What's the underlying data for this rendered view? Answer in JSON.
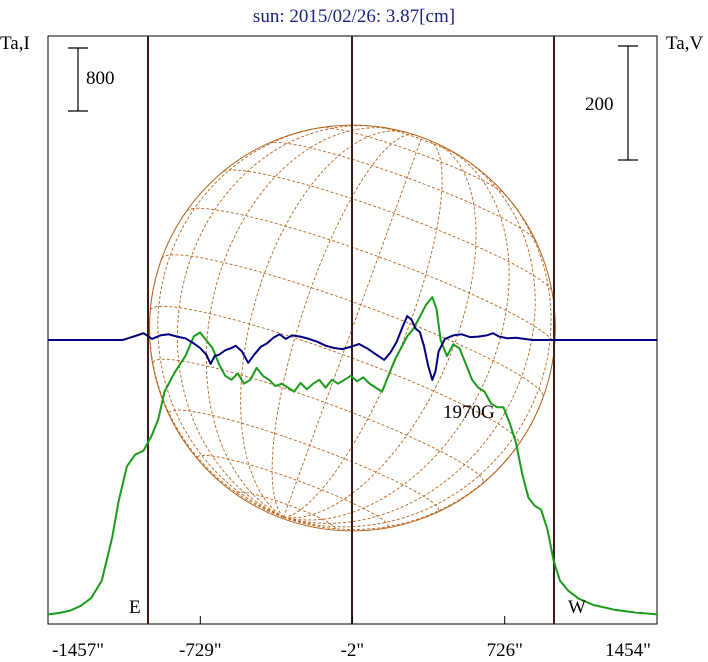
{
  "chart_data": {
    "type": "line",
    "title": "sun: 2015/02/26: 3.87[cm]",
    "left_axis_label": "Ta,I",
    "right_axis_label": "Ta,V",
    "left_scale_bar": "800",
    "right_scale_bar": "200",
    "x_ticks": [
      {
        "label": "-1457\"",
        "value": -1457
      },
      {
        "label": "-729\"",
        "value": -729
      },
      {
        "label": "-2\"",
        "value": -2
      },
      {
        "label": "726\"",
        "value": 726
      },
      {
        "label": "1454\"",
        "value": 1454
      }
    ],
    "limb_labels": {
      "east": "E",
      "west": "W"
    },
    "annotation": "1970G",
    "xlim": [
      -1457,
      1454
    ],
    "solar_disk": {
      "center_x": -2,
      "radius": 970
    },
    "series": [
      {
        "color": "#1a9b1a",
        "points": [
          [
            -1457,
            20
          ],
          [
            -1400,
            40
          ],
          [
            -1350,
            70
          ],
          [
            -1300,
            130
          ],
          [
            -1250,
            230
          ],
          [
            -1200,
            450
          ],
          [
            -1150,
            1000
          ],
          [
            -1120,
            1450
          ],
          [
            -1080,
            1900
          ],
          [
            -1040,
            2050
          ],
          [
            -1000,
            2100
          ],
          [
            -960,
            2300
          ],
          [
            -930,
            2500
          ],
          [
            -900,
            2850
          ],
          [
            -850,
            3100
          ],
          [
            -800,
            3300
          ],
          [
            -760,
            3550
          ],
          [
            -730,
            3600
          ],
          [
            -700,
            3500
          ],
          [
            -670,
            3400
          ],
          [
            -640,
            3200
          ],
          [
            -610,
            3050
          ],
          [
            -580,
            3000
          ],
          [
            -550,
            3080
          ],
          [
            -520,
            2950
          ],
          [
            -490,
            3000
          ],
          [
            -460,
            3150
          ],
          [
            -430,
            3050
          ],
          [
            -400,
            3000
          ],
          [
            -370,
            2920
          ],
          [
            -340,
            2950
          ],
          [
            -310,
            2900
          ],
          [
            -280,
            2850
          ],
          [
            -250,
            2960
          ],
          [
            -220,
            2880
          ],
          [
            -190,
            2950
          ],
          [
            -160,
            3000
          ],
          [
            -130,
            2900
          ],
          [
            -100,
            3000
          ],
          [
            -70,
            2950
          ],
          [
            -40,
            3000
          ],
          [
            -10,
            3050
          ],
          [
            20,
            2980
          ],
          [
            50,
            3030
          ],
          [
            80,
            2950
          ],
          [
            110,
            2900
          ],
          [
            140,
            2850
          ],
          [
            170,
            3050
          ],
          [
            200,
            3250
          ],
          [
            230,
            3400
          ],
          [
            260,
            3550
          ],
          [
            290,
            3650
          ],
          [
            320,
            3800
          ],
          [
            350,
            3950
          ],
          [
            380,
            4050
          ],
          [
            400,
            3900
          ],
          [
            420,
            3500
          ],
          [
            450,
            3300
          ],
          [
            480,
            3450
          ],
          [
            510,
            3400
          ],
          [
            540,
            3200
          ],
          [
            570,
            3000
          ],
          [
            600,
            2900
          ],
          [
            630,
            2850
          ],
          [
            660,
            2700
          ],
          [
            690,
            2650
          ],
          [
            720,
            2650
          ],
          [
            750,
            2450
          ],
          [
            780,
            2200
          ],
          [
            810,
            1800
          ],
          [
            840,
            1500
          ],
          [
            870,
            1400
          ],
          [
            900,
            1350
          ],
          [
            930,
            1100
          ],
          [
            960,
            700
          ],
          [
            990,
            450
          ],
          [
            1030,
            320
          ],
          [
            1080,
            220
          ],
          [
            1150,
            140
          ],
          [
            1250,
            80
          ],
          [
            1350,
            45
          ],
          [
            1454,
            20
          ]
        ]
      },
      {
        "color": "#000080",
        "points": [
          [
            -1457,
            0
          ],
          [
            -1300,
            0
          ],
          [
            -1200,
            0
          ],
          [
            -1100,
            0
          ],
          [
            -1040,
            7
          ],
          [
            -1000,
            12
          ],
          [
            -960,
            2
          ],
          [
            -920,
            8
          ],
          [
            -880,
            10
          ],
          [
            -840,
            6
          ],
          [
            -800,
            3
          ],
          [
            -760,
            -6
          ],
          [
            -730,
            -14
          ],
          [
            -700,
            -26
          ],
          [
            -680,
            -42
          ],
          [
            -660,
            -28
          ],
          [
            -640,
            -26
          ],
          [
            -610,
            -18
          ],
          [
            -580,
            -14
          ],
          [
            -560,
            -10
          ],
          [
            -530,
            -20
          ],
          [
            -500,
            -40
          ],
          [
            -470,
            -25
          ],
          [
            -440,
            -12
          ],
          [
            -410,
            -6
          ],
          [
            -380,
            4
          ],
          [
            -350,
            10
          ],
          [
            -320,
            2
          ],
          [
            -290,
            8
          ],
          [
            -250,
            6
          ],
          [
            -210,
            2
          ],
          [
            -170,
            -3
          ],
          [
            -130,
            -10
          ],
          [
            -90,
            -14
          ],
          [
            -50,
            -16
          ],
          [
            -10,
            -12
          ],
          [
            30,
            -7
          ],
          [
            70,
            -15
          ],
          [
            110,
            -25
          ],
          [
            150,
            -35
          ],
          [
            180,
            -22
          ],
          [
            210,
            -3
          ],
          [
            240,
            25
          ],
          [
            260,
            42
          ],
          [
            280,
            36
          ],
          [
            300,
            20
          ],
          [
            320,
            14
          ],
          [
            340,
            -10
          ],
          [
            360,
            -45
          ],
          [
            380,
            -70
          ],
          [
            395,
            -55
          ],
          [
            410,
            -20
          ],
          [
            440,
            2
          ],
          [
            480,
            8
          ],
          [
            520,
            10
          ],
          [
            560,
            5
          ],
          [
            600,
            6
          ],
          [
            640,
            8
          ],
          [
            670,
            12
          ],
          [
            700,
            6
          ],
          [
            740,
            3
          ],
          [
            780,
            4
          ],
          [
            820,
            2
          ],
          [
            860,
            0
          ],
          [
            900,
            0
          ],
          [
            1000,
            0
          ],
          [
            1200,
            0
          ],
          [
            1454,
            0
          ]
        ]
      }
    ]
  }
}
